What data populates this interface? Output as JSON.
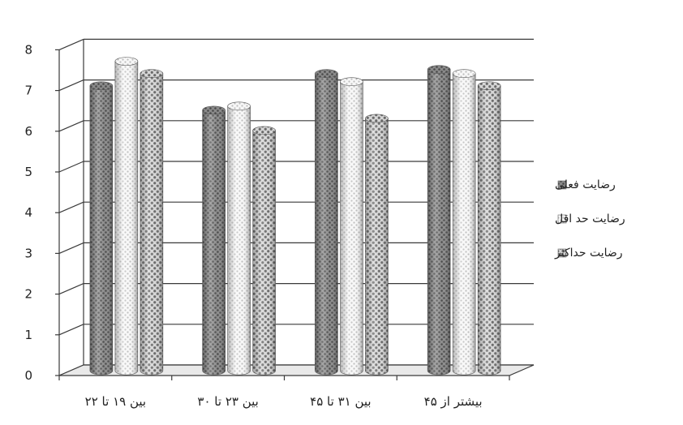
{
  "chart_data": {
    "type": "bar",
    "style": "3d-cylinder",
    "categories": [
      "بین ۱۹ تا ۲۲",
      "بین ۲۳ تا ۳۰",
      "بین ۳۱ تا ۴۵",
      "بیشتر از ۴۵"
    ],
    "series": [
      {
        "name": "رضایت فعلی",
        "values": [
          7.0,
          6.4,
          7.3,
          7.4
        ],
        "pattern": "dark-dots",
        "color": "#7d7d7d"
      },
      {
        "name": "رضایت حد اقل",
        "values": [
          7.6,
          6.5,
          7.1,
          7.3
        ],
        "pattern": "light-dots",
        "color": "#e6e6e6"
      },
      {
        "name": "رضایت حداکثر",
        "values": [
          7.3,
          5.9,
          6.2,
          7.0
        ],
        "pattern": "checker",
        "color": "#a8a8a8"
      }
    ],
    "ylim": [
      0,
      8
    ],
    "yticks": [
      "0",
      "1",
      "2",
      "3",
      "4",
      "5",
      "6",
      "7",
      "8"
    ],
    "grid": true,
    "legend_position": "right",
    "title": "",
    "xlabel": "",
    "ylabel": ""
  }
}
